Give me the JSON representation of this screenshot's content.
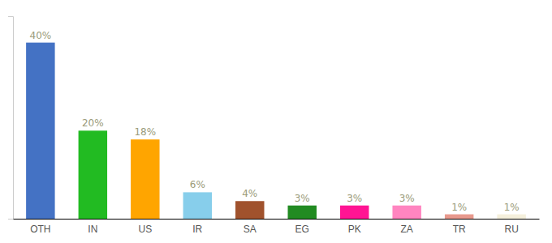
{
  "chart_data": {
    "type": "bar",
    "categories": [
      "OTH",
      "IN",
      "US",
      "IR",
      "SA",
      "EG",
      "PK",
      "ZA",
      "TR",
      "RU"
    ],
    "values": [
      40,
      20,
      18,
      6,
      4,
      3,
      3,
      3,
      1,
      1
    ],
    "value_labels": [
      "40%",
      "20%",
      "18%",
      "6%",
      "4%",
      "3%",
      "3%",
      "3%",
      "1%",
      "1%"
    ],
    "colors": [
      "#4472C4",
      "#22BB22",
      "#FFA500",
      "#87CEEB",
      "#A0522D",
      "#228B22",
      "#FF1493",
      "#FF85C0",
      "#E8998D",
      "#F5F0DC"
    ],
    "ylim": [
      0,
      46
    ],
    "data_labels": true,
    "tick_labels": "x",
    "grid": false
  }
}
